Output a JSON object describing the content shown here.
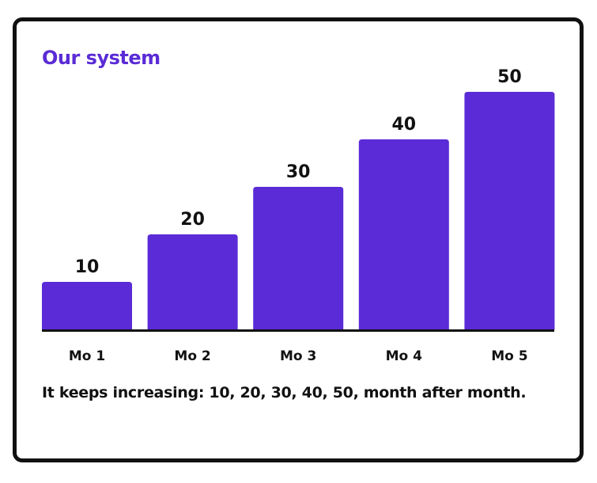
{
  "colors": {
    "accent": "#5a2bd6",
    "bar": "#5a2bd6",
    "text": "#111111",
    "border": "#111111",
    "background": "#ffffff"
  },
  "chart_data": {
    "type": "bar",
    "title": "Our system",
    "categories": [
      "Mo 1",
      "Mo 2",
      "Mo 3",
      "Mo 4",
      "Mo 5"
    ],
    "values": [
      10,
      20,
      30,
      40,
      50
    ],
    "value_labels": [
      "10",
      "20",
      "30",
      "40",
      "50"
    ],
    "xlabel": "",
    "ylabel": "",
    "ylim": [
      0,
      50
    ],
    "grid": false,
    "legend": "none"
  },
  "caption": "It keeps increasing: 10, 20, 30, 40, 50, month after month."
}
